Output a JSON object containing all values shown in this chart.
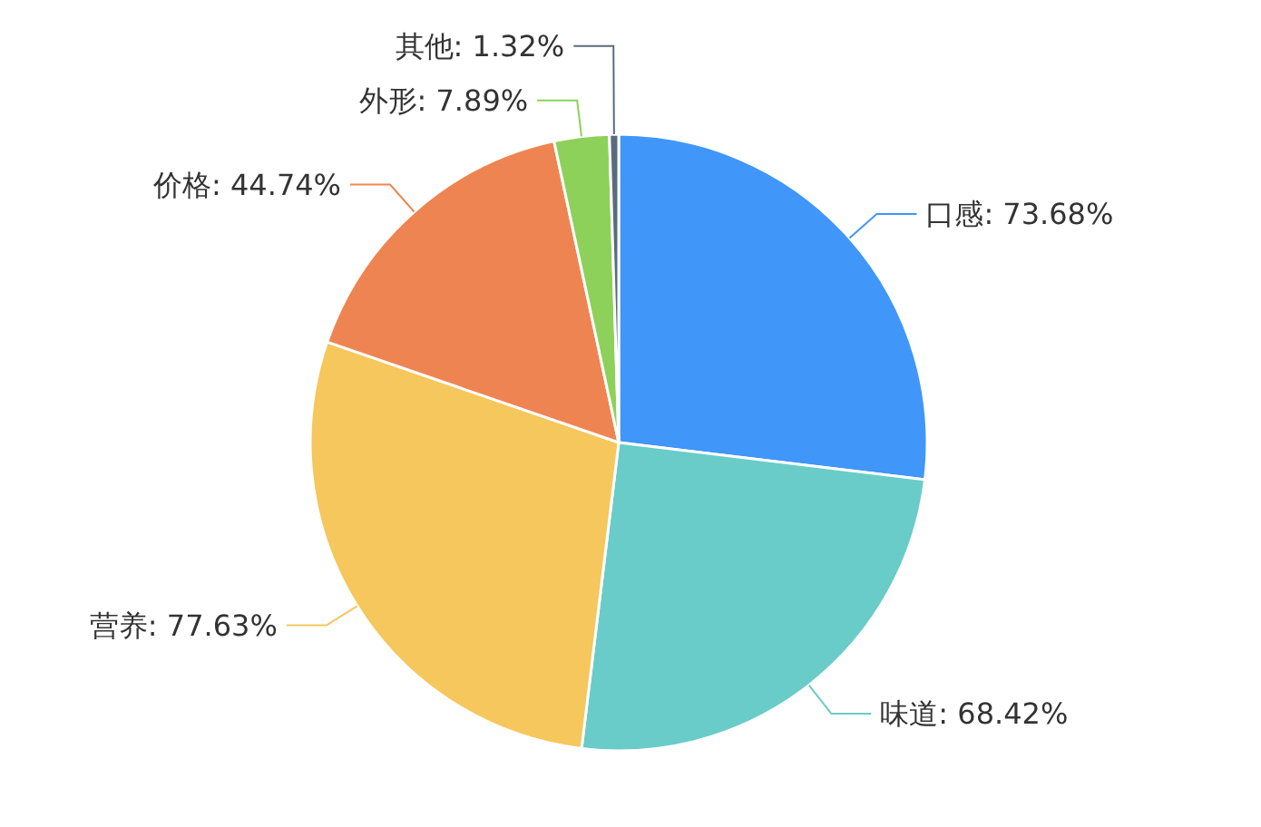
{
  "chart_data": {
    "type": "pie",
    "categories": [
      "口感",
      "味道",
      "营养",
      "价格",
      "外形",
      "其他"
    ],
    "values": [
      73.68,
      68.42,
      77.63,
      44.74,
      7.89,
      1.32
    ],
    "value_labels": [
      "73.68%",
      "68.42%",
      "77.63%",
      "44.74%",
      "7.89%",
      "1.32%"
    ],
    "colors": [
      "#4096f9",
      "#69ccc8",
      "#f5c75c",
      "#ef8453",
      "#8ed15a",
      "#5a6b7d"
    ]
  }
}
